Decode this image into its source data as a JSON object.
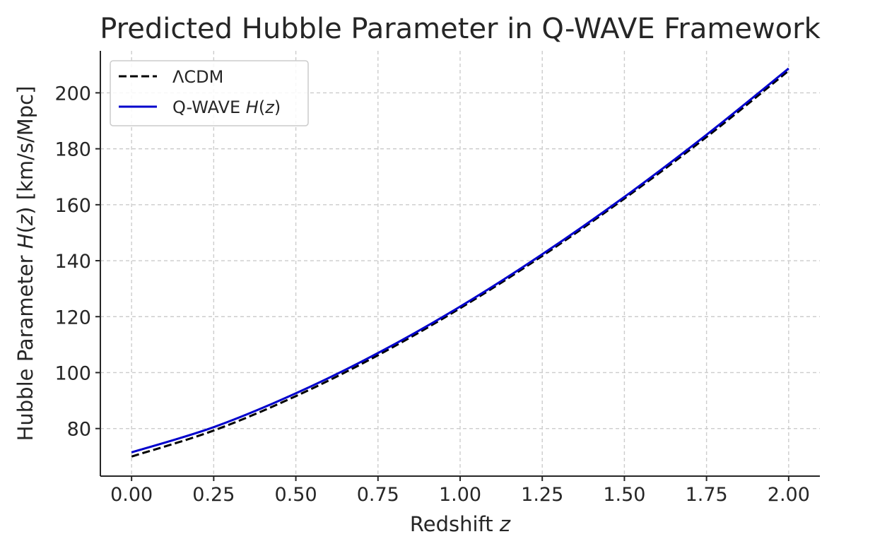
{
  "chart_data": {
    "type": "line",
    "title": "Predicted Hubble Parameter in Q-WAVE Framework",
    "xlabel": "Redshift",
    "xlabel_var": "z",
    "ylabel": "Hubble Parameter",
    "ylabel_func": "H",
    "ylabel_arg": "z",
    "ylabel_unit": "[km/s/Mpc]",
    "xlim": [
      -0.095,
      2.095
    ],
    "ylim": [
      63,
      215
    ],
    "xticks": [
      "0.00",
      "0.25",
      "0.50",
      "0.75",
      "1.00",
      "1.25",
      "1.50",
      "1.75",
      "2.00"
    ],
    "xtick_values": [
      0,
      0.25,
      0.5,
      0.75,
      1.0,
      1.25,
      1.5,
      1.75,
      2.0
    ],
    "yticks": [
      "80",
      "100",
      "120",
      "140",
      "160",
      "180",
      "200"
    ],
    "ytick_values": [
      80,
      100,
      120,
      140,
      160,
      180,
      200
    ],
    "grid": true,
    "legend_position": "top-left",
    "x": [
      0.0,
      0.25,
      0.5,
      0.75,
      1.0,
      1.25,
      1.5,
      1.75,
      2.0
    ],
    "series": [
      {
        "name": "ΛCDM",
        "style": "dashed",
        "color": "#000000",
        "values": [
          70.0,
          79.3,
          91.6,
          106.2,
          123.0,
          141.7,
          162.2,
          184.2,
          207.9
        ]
      },
      {
        "name": "Q-WAVE",
        "name_math": "H(z)",
        "style": "solid",
        "color": "#0000cc",
        "values": [
          71.5,
          80.5,
          92.6,
          107.0,
          123.6,
          142.3,
          162.8,
          185.0,
          208.7
        ]
      }
    ]
  }
}
